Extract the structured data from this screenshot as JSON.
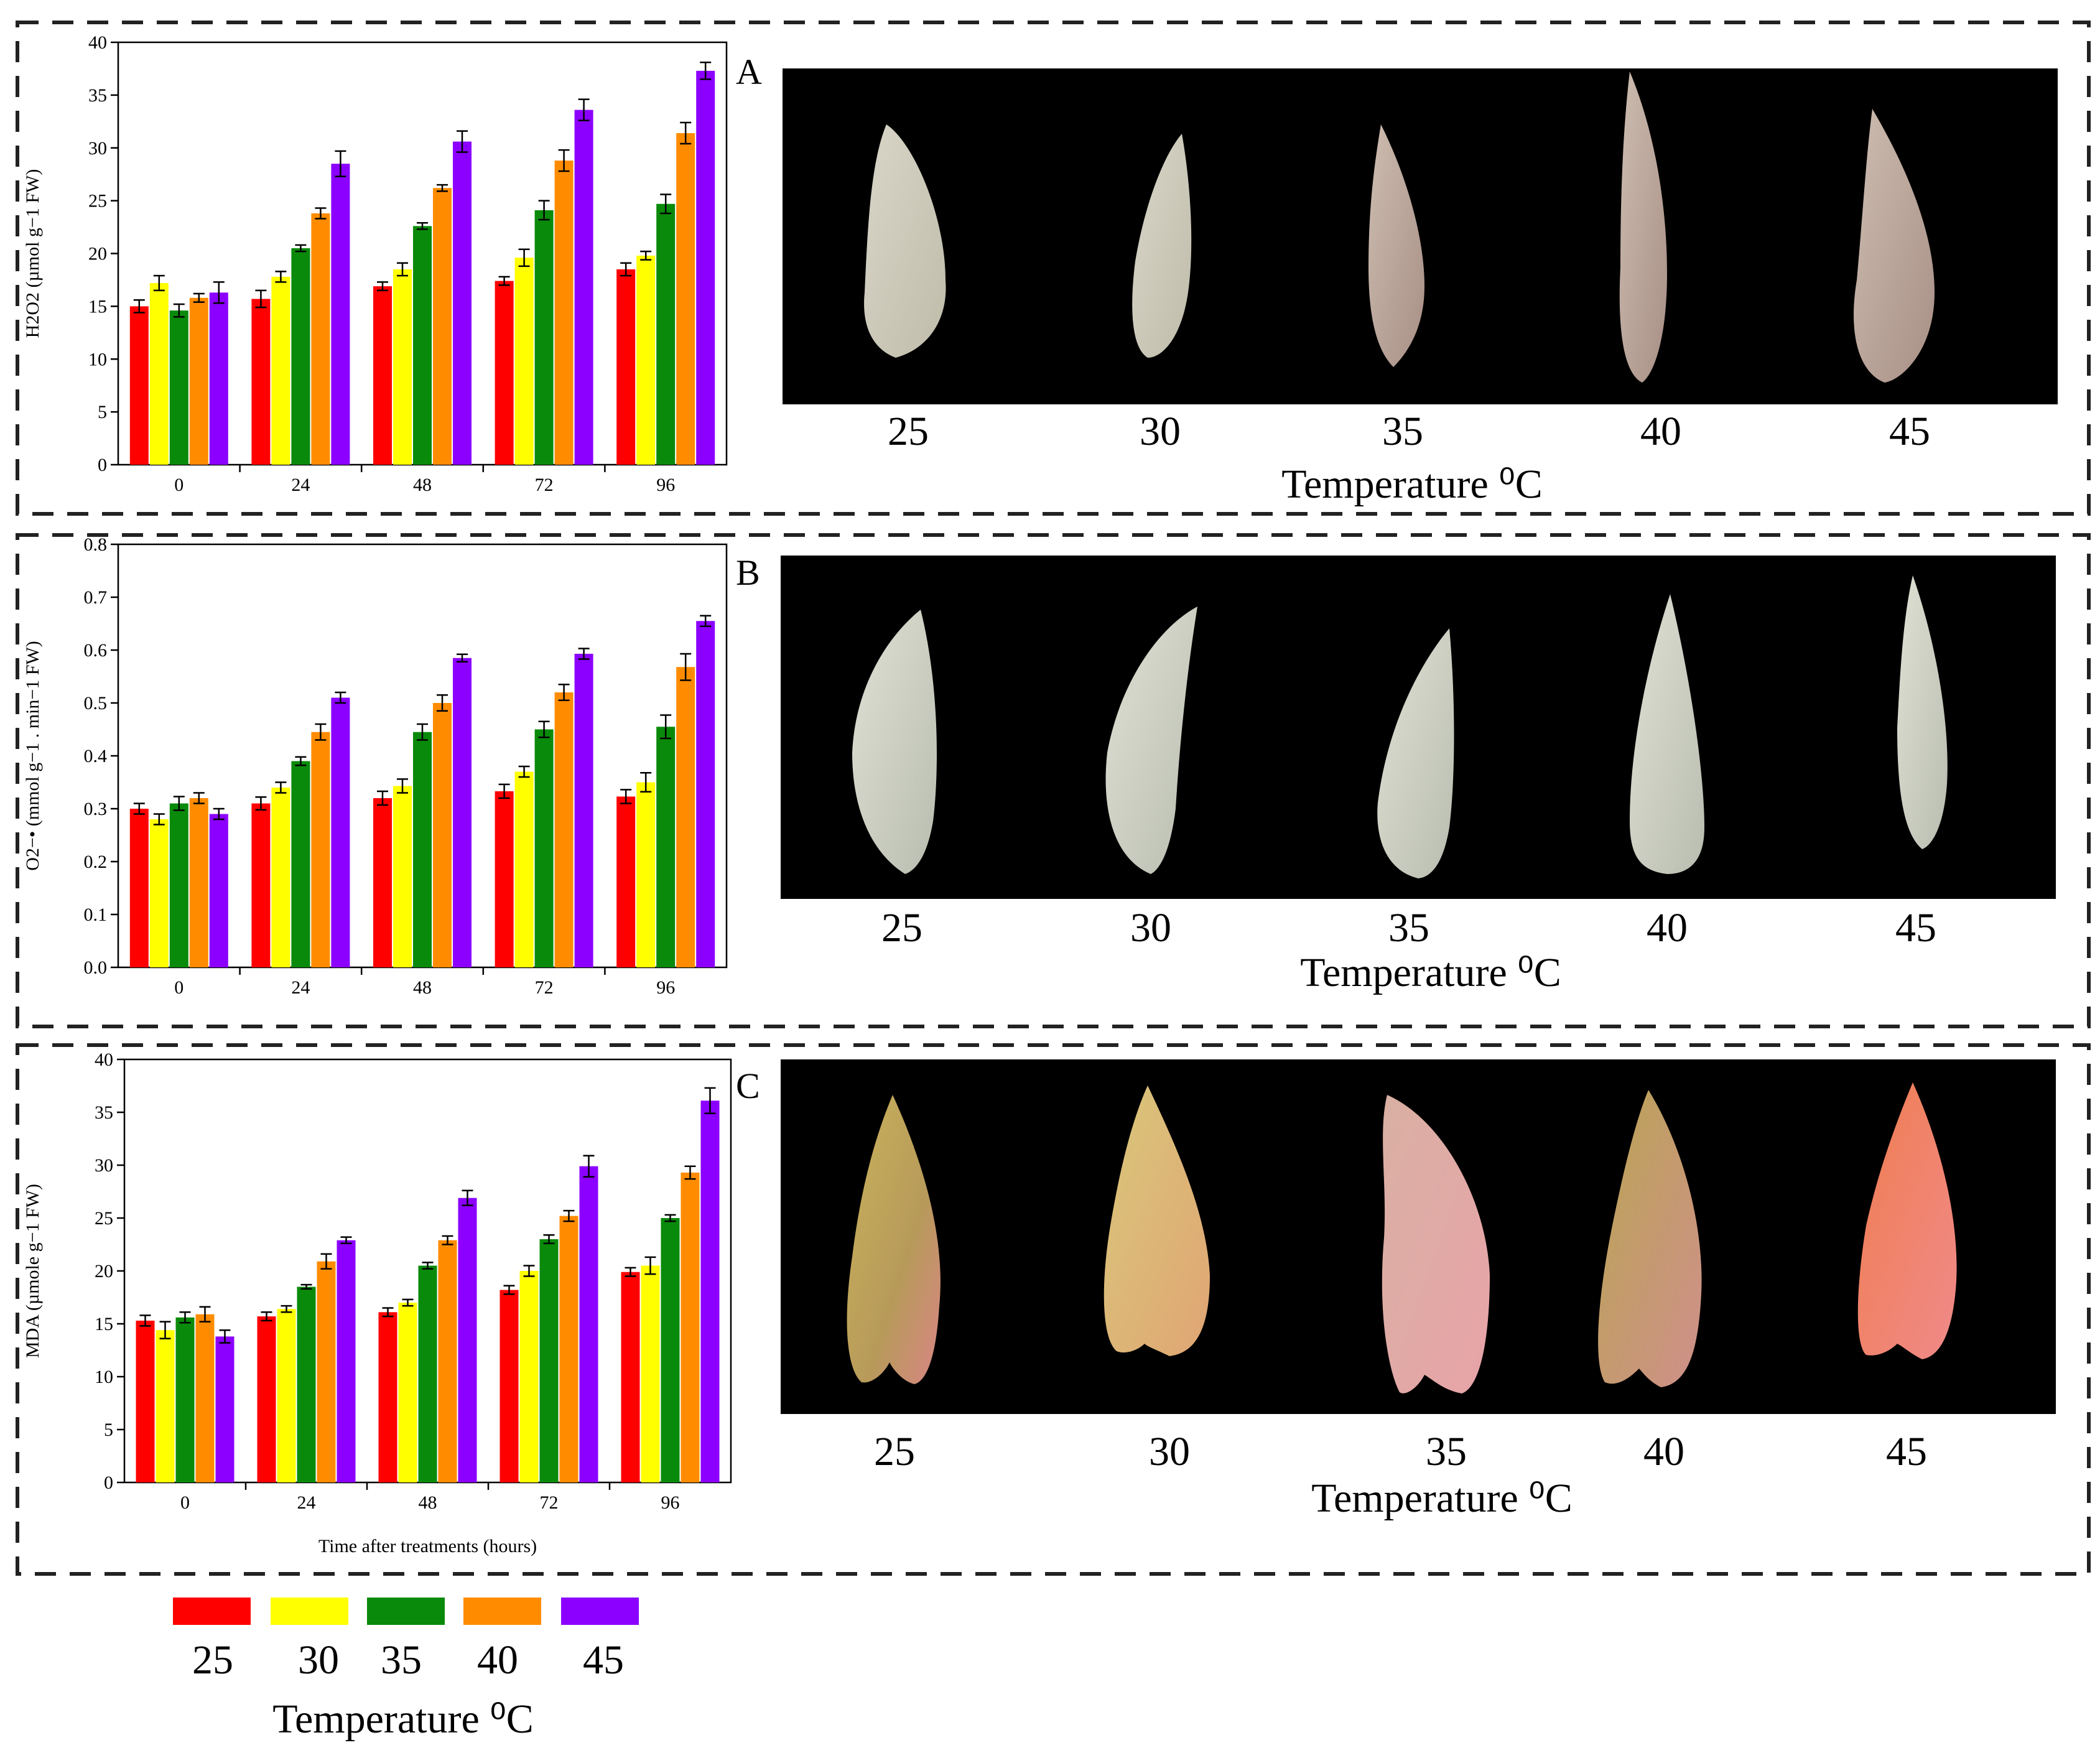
{
  "colors": {
    "t25": "#ff0000",
    "t30": "#ffff00",
    "t35": "#0a8a0a",
    "t40": "#ff8c00",
    "t45": "#8b00ff"
  },
  "legend": {
    "entries": [
      "25",
      "30",
      "35",
      "40",
      "45"
    ],
    "title": "Temperature ⁰C"
  },
  "chart_data": [
    {
      "panel": "A",
      "type": "bar",
      "ylabel": "H2O2 (µmol g−1 FW)",
      "xlabel": "",
      "ylim": [
        0,
        40
      ],
      "yticks": [
        0,
        5,
        10,
        15,
        20,
        25,
        30,
        35,
        40
      ],
      "categories": [
        "0",
        "24",
        "48",
        "72",
        "96"
      ],
      "series": [
        {
          "name": "25",
          "values": [
            15.0,
            15.7,
            16.9,
            17.4,
            18.5
          ],
          "errors": [
            0.6,
            0.8,
            0.4,
            0.4,
            0.6
          ]
        },
        {
          "name": "30",
          "values": [
            17.2,
            17.8,
            18.5,
            19.6,
            19.8
          ],
          "errors": [
            0.7,
            0.5,
            0.6,
            0.8,
            0.4
          ]
        },
        {
          "name": "35",
          "values": [
            14.6,
            20.5,
            22.6,
            24.1,
            24.7
          ],
          "errors": [
            0.6,
            0.3,
            0.3,
            0.9,
            0.9
          ]
        },
        {
          "name": "40",
          "values": [
            15.8,
            23.8,
            26.2,
            28.8,
            31.4
          ],
          "errors": [
            0.4,
            0.5,
            0.3,
            1.0,
            1.0
          ]
        },
        {
          "name": "45",
          "values": [
            16.3,
            28.5,
            30.6,
            33.6,
            37.3
          ],
          "errors": [
            1.0,
            1.2,
            1.0,
            1.0,
            0.8
          ]
        }
      ],
      "photo": {
        "labels": [
          "25",
          "30",
          "35",
          "40",
          "45"
        ],
        "xlabel": "Temperature ⁰C"
      }
    },
    {
      "panel": "B",
      "type": "bar",
      "ylabel": "O2−• (mmol g−1 . min−1 FW)",
      "xlabel": "",
      "ylim": [
        0,
        0.8
      ],
      "yticks": [
        0.0,
        0.1,
        0.2,
        0.3,
        0.4,
        0.5,
        0.6,
        0.7,
        0.8
      ],
      "categories": [
        "0",
        "24",
        "48",
        "72",
        "96"
      ],
      "series": [
        {
          "name": "25",
          "values": [
            0.3,
            0.31,
            0.32,
            0.333,
            0.323
          ],
          "errors": [
            0.01,
            0.012,
            0.013,
            0.013,
            0.013
          ]
        },
        {
          "name": "30",
          "values": [
            0.28,
            0.34,
            0.343,
            0.37,
            0.35
          ],
          "errors": [
            0.01,
            0.01,
            0.013,
            0.01,
            0.018
          ]
        },
        {
          "name": "35",
          "values": [
            0.31,
            0.39,
            0.445,
            0.45,
            0.455
          ],
          "errors": [
            0.013,
            0.008,
            0.015,
            0.015,
            0.022
          ]
        },
        {
          "name": "40",
          "values": [
            0.32,
            0.445,
            0.5,
            0.52,
            0.568
          ],
          "errors": [
            0.01,
            0.015,
            0.015,
            0.015,
            0.025
          ]
        },
        {
          "name": "45",
          "values": [
            0.29,
            0.51,
            0.585,
            0.593,
            0.655
          ],
          "errors": [
            0.01,
            0.01,
            0.007,
            0.01,
            0.01
          ]
        }
      ],
      "photo": {
        "labels": [
          "25",
          "30",
          "35",
          "40",
          "45"
        ],
        "xlabel": "Temperature ⁰C"
      }
    },
    {
      "panel": "C",
      "type": "bar",
      "ylabel": "MDA (µmole g−1 FW)",
      "xlabel": "Time after treatments (hours)",
      "ylim": [
        0,
        40
      ],
      "yticks": [
        0,
        5,
        10,
        15,
        20,
        25,
        30,
        35,
        40
      ],
      "categories": [
        "0",
        "24",
        "48",
        "72",
        "96"
      ],
      "series": [
        {
          "name": "25",
          "values": [
            15.3,
            15.7,
            16.1,
            18.2,
            19.9
          ],
          "errors": [
            0.5,
            0.4,
            0.4,
            0.4,
            0.4
          ]
        },
        {
          "name": "30",
          "values": [
            14.4,
            16.4,
            17.0,
            20.0,
            20.5
          ],
          "errors": [
            0.8,
            0.3,
            0.3,
            0.5,
            0.8
          ]
        },
        {
          "name": "35",
          "values": [
            15.6,
            18.5,
            20.5,
            23.0,
            25.0
          ],
          "errors": [
            0.5,
            0.2,
            0.3,
            0.4,
            0.3
          ]
        },
        {
          "name": "40",
          "values": [
            15.9,
            20.9,
            22.9,
            25.2,
            29.3
          ],
          "errors": [
            0.7,
            0.7,
            0.4,
            0.5,
            0.6
          ]
        },
        {
          "name": "45",
          "values": [
            13.8,
            22.9,
            26.9,
            29.9,
            36.1
          ],
          "errors": [
            0.6,
            0.3,
            0.7,
            1.0,
            1.2
          ]
        }
      ],
      "photo": {
        "labels": [
          "25",
          "30",
          "35",
          "40",
          "45"
        ],
        "xlabel": "Temperature ⁰C"
      }
    }
  ]
}
